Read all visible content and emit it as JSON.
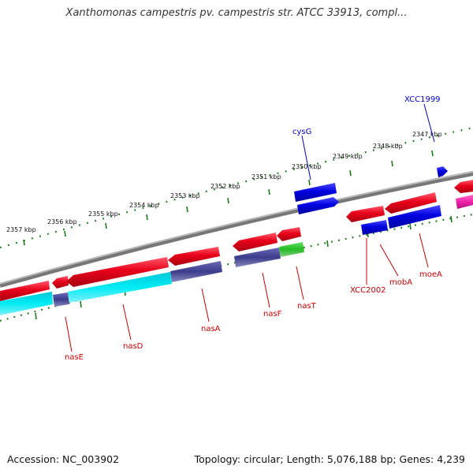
{
  "title": "Xanthomonas campestris pv. campestris str. ATCC 33913, compl...",
  "footer": {
    "accession": "Accession: NC_003902",
    "summary": "Topology: circular; Length: 5,076,188 bp; Genes: 4,239"
  },
  "colors": {
    "red": "#e8001a",
    "blue": "#0000e0",
    "navy": "#3c3c8c",
    "cyan": "#00dde8",
    "green": "#22bb22",
    "magenta": "#ee22aa",
    "backbone": "#8a8a8a",
    "tick": "#1a7a1a",
    "label_red": "#cc0000",
    "label_blue": "#0000cc"
  },
  "kbp_labels": [
    "2357 kbp",
    "2356 kbp",
    "2355 kbp",
    "2354 kbp",
    "2353 kbp",
    "2352 kbp",
    "2351 kbp",
    "2350 kbp",
    "2349 kbp",
    "2348 kbp",
    "2347 kbp"
  ],
  "gene_labels": {
    "nasE": "nasE",
    "nasD": "nasD",
    "nasA": "nasA",
    "nasF": "nasF",
    "nasT": "nasT",
    "XCC2002": "XCC2002",
    "mobA": "mobA",
    "moeA": "moeA",
    "cysG": "cysG",
    "XCC1999": "XCC1999"
  }
}
